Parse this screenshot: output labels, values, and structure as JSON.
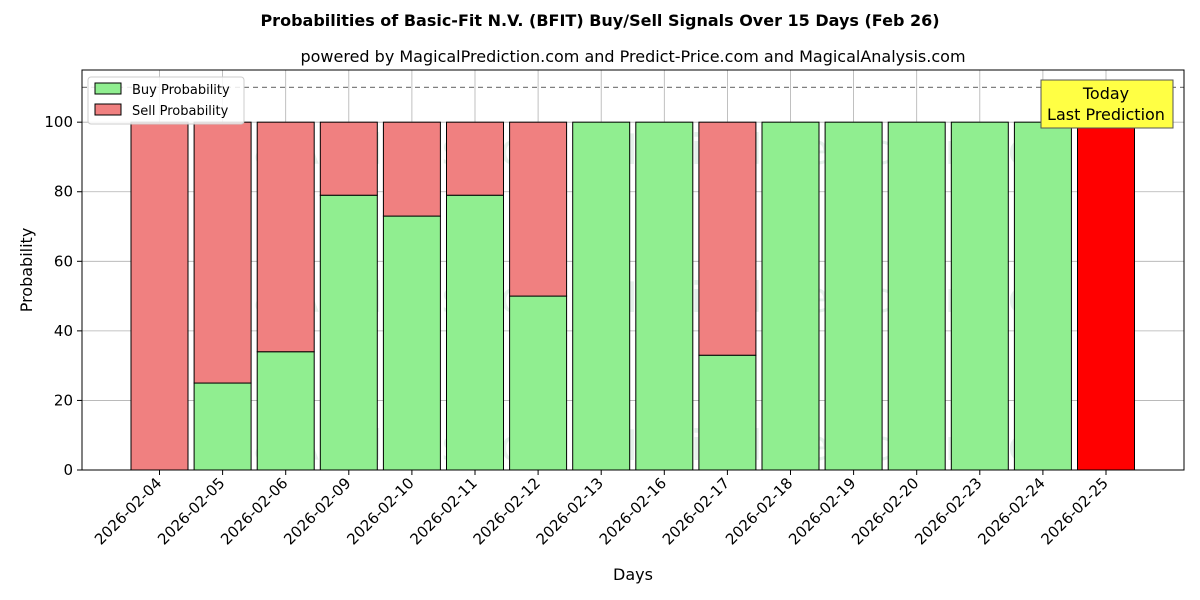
{
  "chart_data": {
    "type": "bar",
    "stacked": true,
    "title": "Probabilities of Basic-Fit N.V. (BFIT) Buy/Sell Signals Over 15 Days (Feb 26)",
    "subtitle": "powered by MagicalPrediction.com and Predict-Price.com and MagicalAnalysis.com",
    "xlabel": "Days",
    "ylabel": "Probability",
    "ylim": [
      0,
      115
    ],
    "yticks": [
      0,
      20,
      40,
      60,
      80,
      100
    ],
    "grid": true,
    "legend_position": "top-left",
    "categories": [
      "2026-02-04",
      "2026-02-05",
      "2026-02-06",
      "2026-02-09",
      "2026-02-10",
      "2026-02-11",
      "2026-02-12",
      "2026-02-13",
      "2026-02-16",
      "2026-02-17",
      "2026-02-18",
      "2026-02-19",
      "2026-02-20",
      "2026-02-23",
      "2026-02-24",
      "2026-02-25"
    ],
    "series": [
      {
        "name": "Buy Probability",
        "color": "#90ee90",
        "values": [
          0,
          25,
          34,
          79,
          73,
          79,
          50,
          100,
          100,
          33,
          100,
          100,
          100,
          100,
          100,
          0
        ]
      },
      {
        "name": "Sell Probability",
        "color": "#f08080",
        "values": [
          100,
          75,
          66,
          21,
          27,
          21,
          50,
          0,
          0,
          67,
          0,
          0,
          0,
          0,
          0,
          100
        ]
      }
    ],
    "highlight": {
      "category": "2026-02-25",
      "color": "#ff0000"
    },
    "reference_line": {
      "y": 110,
      "style": "dashed",
      "color": "#808080"
    },
    "annotation": {
      "lines": [
        "Today",
        "Last Prediction"
      ],
      "background": "#ffff44"
    },
    "watermarks": [
      "MagicalAnalysis.com",
      "MagicalPrediction.com"
    ]
  }
}
